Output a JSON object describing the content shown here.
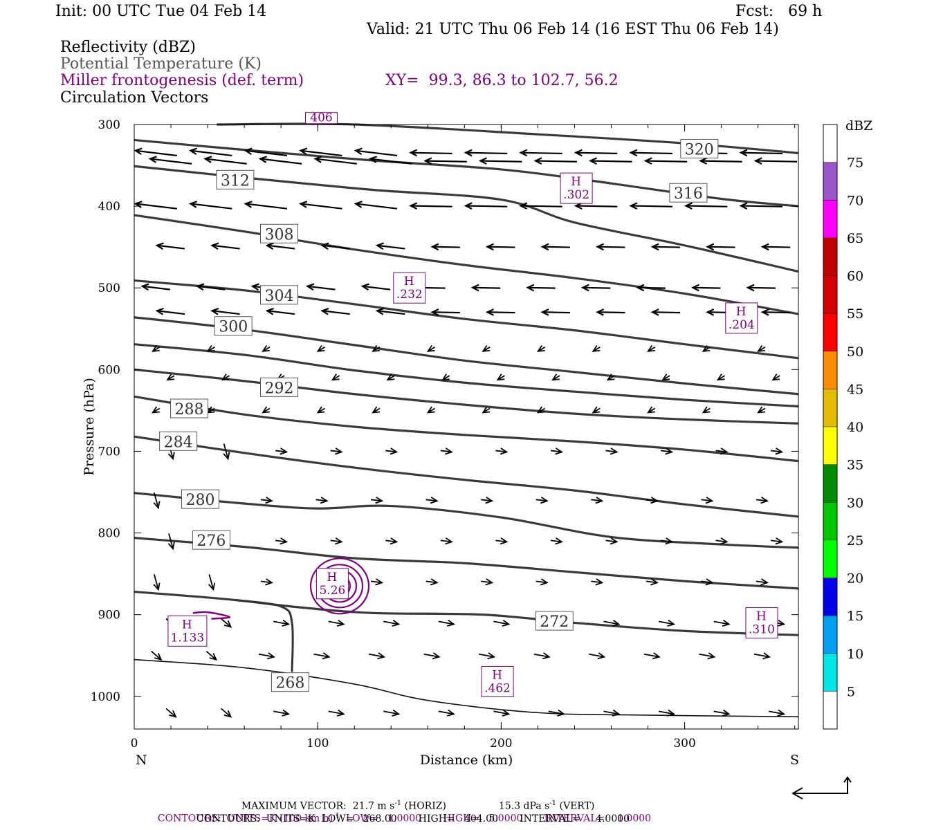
{
  "header": {
    "init": "Init: 00 UTC Tue 04 Feb 14",
    "fcst": "Fcst:   69 h",
    "valid": "Valid: 21 UTC Thu 06 Feb 14 (16 EST Thu 06 Feb 14)",
    "fields": {
      "reflectivity": "Reflectivity (dBZ)",
      "theta": "Potential Temperature (K)",
      "miller": "Miller frontogenesis (def. term)",
      "vectors": "Circulation Vectors"
    },
    "xy": "XY=  99.3, 86.3 to 102.7, 56.2"
  },
  "colors": {
    "theta_contour": "#3a3a3a",
    "frontogenesis": "#800080",
    "vectors": "#000000"
  },
  "chart_data": {
    "type": "contour",
    "xlabel": "Distance (km)",
    "ylabel": "Pressure (hPa)",
    "xlim": [
      0,
      362
    ],
    "ylim": [
      1040,
      300
    ],
    "x_ticks": [
      0,
      100,
      200,
      300
    ],
    "y_ticks": [
      300,
      400,
      500,
      600,
      700,
      800,
      900,
      1000
    ],
    "x_end_labels": {
      "left": "N",
      "right": "S"
    },
    "theta_contours": [
      {
        "value": 320,
        "label": "320",
        "label_at": [
          308,
          330
        ],
        "points": [
          [
            45,
            300
          ],
          [
            120,
            300
          ],
          [
            220,
            312
          ],
          [
            300,
            323
          ],
          [
            362,
            335
          ]
        ]
      },
      {
        "value": 316,
        "label": "316",
        "label_at": [
          302,
          384
        ],
        "points": [
          [
            0,
            319
          ],
          [
            60,
            331
          ],
          [
            130,
            344
          ],
          [
            200,
            355
          ],
          [
            250,
            369
          ],
          [
            320,
            391
          ],
          [
            362,
            400
          ]
        ]
      },
      {
        "value": 312,
        "label": "312",
        "label_at": [
          55,
          368
        ],
        "points": [
          [
            0,
            351
          ],
          [
            60,
            365
          ],
          [
            130,
            380
          ],
          [
            200,
            392
          ],
          [
            240,
            420
          ],
          [
            300,
            448
          ],
          [
            362,
            480
          ]
        ]
      },
      {
        "value": 308,
        "label": "308",
        "label_at": [
          79,
          434
        ],
        "points": [
          [
            0,
            411
          ],
          [
            60,
            431
          ],
          [
            120,
            453
          ],
          [
            180,
            472
          ],
          [
            240,
            488
          ],
          [
            300,
            507
          ],
          [
            362,
            532
          ]
        ]
      },
      {
        "value": 304,
        "label": "304",
        "label_at": [
          79,
          509
        ],
        "points": [
          [
            0,
            491
          ],
          [
            60,
            503
          ],
          [
            120,
            520
          ],
          [
            180,
            538
          ],
          [
            240,
            552
          ],
          [
            300,
            569
          ],
          [
            362,
            586
          ]
        ]
      },
      {
        "value": 300,
        "label": "300",
        "label_at": [
          54,
          547
        ],
        "points": [
          [
            0,
            536
          ],
          [
            60,
            551
          ],
          [
            120,
            570
          ],
          [
            180,
            589
          ],
          [
            240,
            603
          ],
          [
            300,
            617
          ],
          [
            362,
            630
          ]
        ]
      },
      {
        "value": 296,
        "label": "",
        "label_at": null,
        "points": [
          [
            0,
            569
          ],
          [
            60,
            582
          ],
          [
            120,
            601
          ],
          [
            180,
            616
          ],
          [
            240,
            627
          ],
          [
            300,
            637
          ],
          [
            362,
            645
          ]
        ]
      },
      {
        "value": 292,
        "label": "292",
        "label_at": [
          79,
          622
        ],
        "points": [
          [
            0,
            600
          ],
          [
            60,
            614
          ],
          [
            120,
            630
          ],
          [
            180,
            643
          ],
          [
            240,
            654
          ],
          [
            300,
            661
          ],
          [
            362,
            666
          ]
        ]
      },
      {
        "value": 288,
        "label": "288",
        "label_at": [
          30,
          648
        ],
        "points": [
          [
            0,
            633
          ],
          [
            60,
            655
          ],
          [
            120,
            670
          ],
          [
            180,
            680
          ],
          [
            240,
            688
          ],
          [
            300,
            698
          ],
          [
            362,
            712
          ]
        ]
      },
      {
        "value": 284,
        "label": "284",
        "label_at": [
          24,
          688
        ],
        "points": [
          [
            0,
            682
          ],
          [
            60,
            702
          ],
          [
            120,
            720
          ],
          [
            180,
            735
          ],
          [
            240,
            748
          ],
          [
            300,
            765
          ],
          [
            362,
            780
          ]
        ]
      },
      {
        "value": 280,
        "label": "280",
        "label_at": [
          36,
          759
        ],
        "points": [
          [
            0,
            751
          ],
          [
            60,
            764
          ],
          [
            100,
            770
          ],
          [
            140,
            767
          ],
          [
            200,
            781
          ],
          [
            260,
            805
          ],
          [
            320,
            814
          ],
          [
            362,
            818
          ]
        ]
      },
      {
        "value": 276,
        "label": "276",
        "label_at": [
          42,
          809
        ],
        "points": [
          [
            0,
            806
          ],
          [
            60,
            817
          ],
          [
            120,
            831
          ],
          [
            180,
            837
          ],
          [
            240,
            848
          ],
          [
            300,
            859
          ],
          [
            362,
            868
          ]
        ]
      },
      {
        "value": 272,
        "label": "272",
        "label_at": [
          229,
          908
        ],
        "points": [
          [
            0,
            872
          ],
          [
            50,
            881
          ],
          [
            90,
            891
          ],
          [
            130,
            898
          ],
          [
            190,
            900
          ],
          [
            240,
            910
          ],
          [
            300,
            920
          ],
          [
            362,
            925
          ]
        ]
      },
      {
        "value": 268,
        "label": "268",
        "label_at": [
          85,
          983
        ],
        "points": [
          [
            0,
            955
          ],
          [
            60,
            965
          ],
          [
            120,
            985
          ],
          [
            160,
            1005
          ],
          [
            220,
            1020
          ],
          [
            280,
            1023
          ],
          [
            362,
            1025
          ]
        ]
      }
    ],
    "frontogenesis_maxima": [
      {
        "label": "H",
        "value": "5.26",
        "at": [
          108,
          862
        ]
      },
      {
        "label": "H",
        "value": "1.133",
        "at": [
          29,
          920
        ]
      },
      {
        "label": "H",
        "value": ".302",
        "at": [
          241,
          378
        ]
      },
      {
        "label": "H",
        "value": ".232",
        "at": [
          150,
          500
        ]
      },
      {
        "label": "H",
        "value": ".204",
        "at": [
          331,
          537
        ]
      },
      {
        "label": "H",
        "value": ".310",
        "at": [
          342,
          910
        ]
      },
      {
        "label": "H",
        "value": ".462",
        "at": [
          198,
          982
        ]
      },
      {
        "label": "",
        "value": "406",
        "at": [
          102,
          304
        ]
      }
    ],
    "colorbar": {
      "title": "dBZ",
      "levels": [
        5,
        10,
        15,
        20,
        25,
        30,
        35,
        40,
        45,
        50,
        55,
        60,
        65,
        70,
        75
      ],
      "colors": [
        "#ffffff",
        "#00e5e5",
        "#00a0f0",
        "#0000e8",
        "#00ff00",
        "#00c800",
        "#008c00",
        "#ffff00",
        "#e6bc00",
        "#ff8c00",
        "#ff0000",
        "#d60000",
        "#c00000",
        "#ff00ff",
        "#9955c9",
        "#ffffff"
      ]
    }
  },
  "footer": {
    "max_vector": "MAXIMUM VECTOR:  21.7 m s",
    "horiz": " (HORIZ)",
    "vert": "15.3 dPa s",
    "vert_unit": " (VERT)",
    "contours_purple": "CONTOURS:  UNITS=K (100 km h)",
    "contours_purple_rest": "  LOW=   1.0000       HIGH=   5.0000       INTERVAL=    1.0000",
    "contours_black": "CONTOURS:  UNITS=K  LOW=   268.00       HIGH=   404.00       INTERVAL=     4.0000",
    "superscript_minus1": "-1"
  }
}
